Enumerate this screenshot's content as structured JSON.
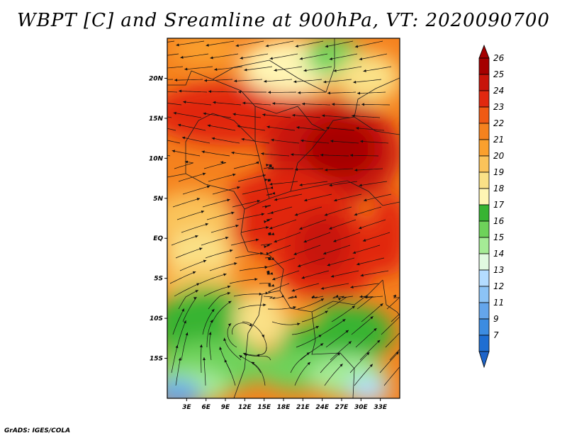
{
  "title": "WBPT [C] and Sreamline at 900hPa, VT: 2020090700",
  "credit": "GrADS: IGES/COLA",
  "map": {
    "lon_range": [
      0,
      36
    ],
    "lat_range": [
      -20,
      25
    ],
    "lat_ticks": [
      {
        "value": 20,
        "label": "20N"
      },
      {
        "value": 15,
        "label": "15N"
      },
      {
        "value": 10,
        "label": "10N"
      },
      {
        "value": 5,
        "label": "5N"
      },
      {
        "value": 0,
        "label": "EQ"
      },
      {
        "value": -5,
        "label": "5S"
      },
      {
        "value": -10,
        "label": "10S"
      },
      {
        "value": -15,
        "label": "15S"
      }
    ],
    "lon_ticks": [
      {
        "value": 3,
        "label": "3E"
      },
      {
        "value": 6,
        "label": "6E"
      },
      {
        "value": 9,
        "label": "9E"
      },
      {
        "value": 12,
        "label": "12E"
      },
      {
        "value": 15,
        "label": "15E"
      },
      {
        "value": 18,
        "label": "18E"
      },
      {
        "value": 21,
        "label": "21E"
      },
      {
        "value": 24,
        "label": "24E"
      },
      {
        "value": 27,
        "label": "27E"
      },
      {
        "value": 30,
        "label": "30E"
      },
      {
        "value": 33,
        "label": "33E"
      }
    ]
  },
  "colorbar": {
    "levels": [
      {
        "label": "26",
        "color": "#a50000"
      },
      {
        "label": "25",
        "color": "#c8140a"
      },
      {
        "label": "24",
        "color": "#e1280f"
      },
      {
        "label": "23",
        "color": "#f05a14"
      },
      {
        "label": "22",
        "color": "#f5821e"
      },
      {
        "label": "21",
        "color": "#faa02d"
      },
      {
        "label": "20",
        "color": "#fac35a"
      },
      {
        "label": "19",
        "color": "#fae187"
      },
      {
        "label": "18",
        "color": "#fff5b4"
      },
      {
        "label": "17",
        "color": "#37b432"
      },
      {
        "label": "16",
        "color": "#6ed25a"
      },
      {
        "label": "15",
        "color": "#a5eb96"
      },
      {
        "label": "14",
        "color": "#e1fae1"
      },
      {
        "label": "13",
        "color": "#b4dcff"
      },
      {
        "label": "12",
        "color": "#8cc3f5"
      },
      {
        "label": "11",
        "color": "#64a5eb"
      },
      {
        "label": "9",
        "color": "#3c8ce1"
      },
      {
        "label": "7",
        "color": "#1e6ed2"
      }
    ],
    "bottom_color": "#1e64c8"
  }
}
